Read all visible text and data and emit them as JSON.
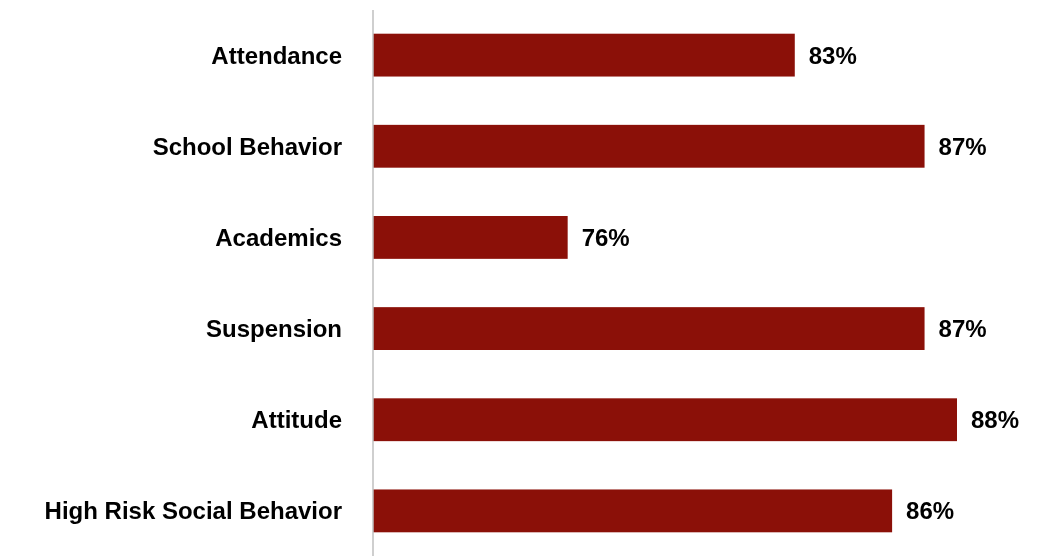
{
  "chart_data": {
    "type": "bar",
    "orientation": "horizontal",
    "categories": [
      "Attendance",
      "School Behavior",
      "Academics",
      "Suspension",
      "Attitude",
      "High Risk Social Behavior"
    ],
    "values": [
      83,
      87,
      76,
      87,
      88,
      86
    ],
    "value_labels": [
      "83%",
      "87%",
      "76%",
      "87%",
      "88%",
      "86%"
    ],
    "color": "#8b1008",
    "xlim": [
      70,
      88
    ]
  }
}
